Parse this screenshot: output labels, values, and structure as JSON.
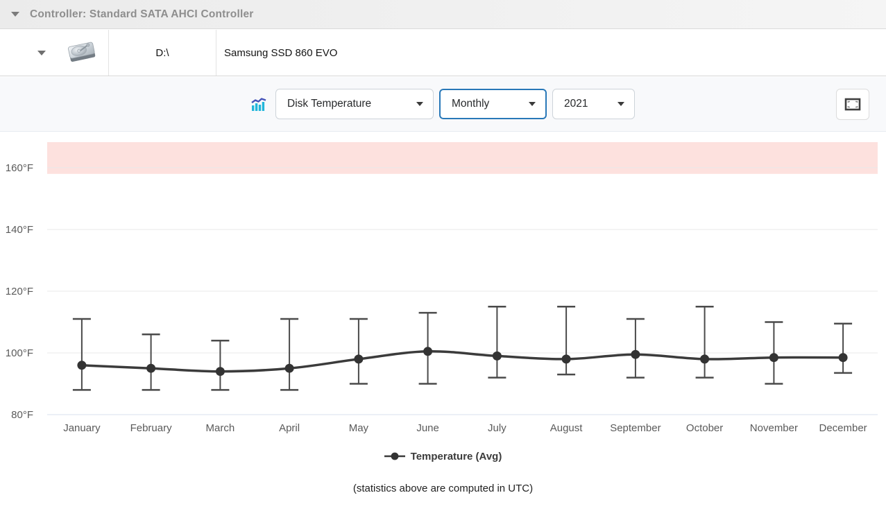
{
  "header": {
    "title": "Controller: Standard SATA AHCI Controller"
  },
  "disk": {
    "drive_letter": "D:\\",
    "model": "Samsung SSD 860 EVO"
  },
  "toolbar": {
    "metric": "Disk Temperature",
    "period": "Monthly",
    "year": "2021"
  },
  "chart_data": {
    "type": "line",
    "categories": [
      "January",
      "February",
      "March",
      "April",
      "May",
      "June",
      "July",
      "August",
      "September",
      "October",
      "November",
      "December"
    ],
    "series": [
      {
        "name": "Temperature (Avg)",
        "values": [
          96,
          95,
          94,
          95,
          98,
          100.5,
          99,
          98,
          99.5,
          98,
          98.5,
          98.5
        ]
      }
    ],
    "error_bars": {
      "max": [
        111,
        106,
        104,
        111,
        111,
        113,
        115,
        115,
        111,
        115,
        110,
        109.5
      ],
      "min": [
        88,
        88,
        88,
        88,
        90,
        90,
        92,
        93,
        92,
        92,
        90,
        93.5
      ]
    },
    "yticks": [
      80,
      100,
      120,
      140,
      160
    ],
    "ytick_suffix": "°F",
    "ylim": [
      80,
      168.3
    ],
    "grid": true,
    "danger_zone": {
      "from": 158,
      "color": "#fde1de"
    },
    "line_color": "#3b3b3b",
    "marker_color": "#333333",
    "errorbar_color": "#4a4a4a",
    "legend_label": "Temperature (Avg)",
    "legend_position": "bottom",
    "footnote": "(statistics above are computed in UTC)"
  }
}
